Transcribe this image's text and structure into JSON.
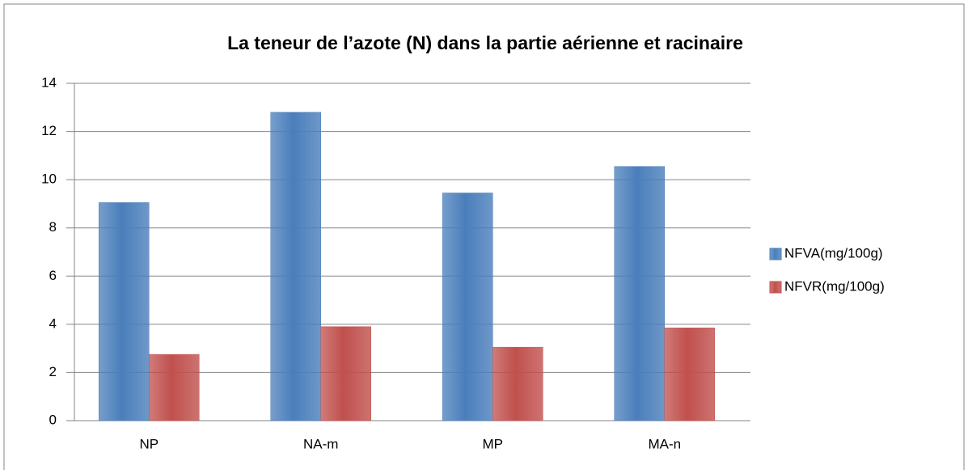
{
  "chart_data": {
    "type": "bar",
    "title": "La teneur de l’azote (N) dans la partie aérienne et racinaire",
    "categories": [
      "NP",
      "NA-m",
      "MP",
      "MA-n"
    ],
    "series": [
      {
        "name": "NFVA(mg/100g)",
        "color": "#4a7ebb",
        "values": [
          9.05,
          12.8,
          9.45,
          10.55
        ]
      },
      {
        "name": "NFVR(mg/100g)",
        "color": "#c0504d",
        "values": [
          2.75,
          3.9,
          3.05,
          3.85
        ]
      }
    ],
    "ylim": [
      0,
      14
    ],
    "yticks": [
      0,
      2,
      4,
      6,
      8,
      10,
      12,
      14
    ],
    "grid": true,
    "legend": "right"
  }
}
